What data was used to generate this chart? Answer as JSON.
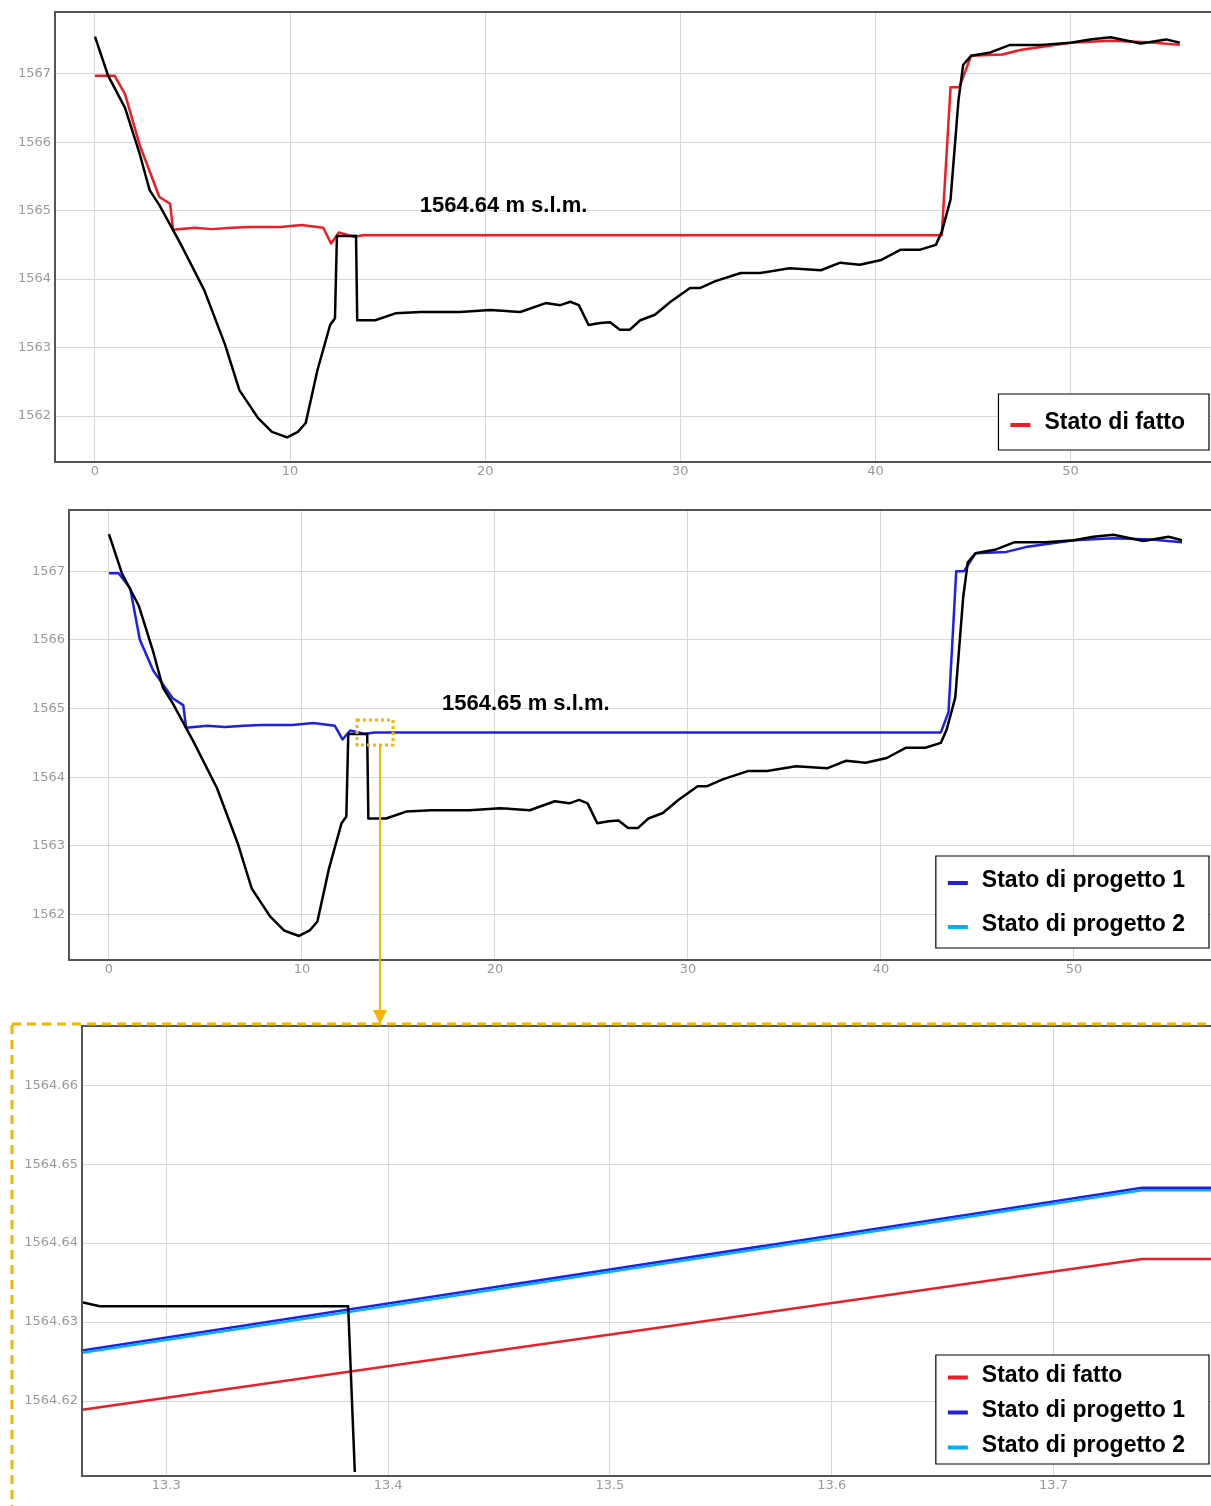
{
  "chart_data": [
    {
      "type": "line",
      "annotations": [
        "1564.64 m s.l.m."
      ],
      "xlim": [
        -2.05,
        57.2
      ],
      "ylim": [
        1561.33,
        1567.9
      ],
      "xticks": [
        0,
        10,
        20,
        30,
        40,
        50
      ],
      "yticks": [
        1562,
        1563,
        1564,
        1565,
        1566,
        1567
      ],
      "grid": true,
      "legend": "bottom right",
      "series": [
        {
          "color": "#000000",
          "x": [
            0,
            0.67,
            1.54,
            2.3,
            2.8,
            3.3,
            4.36,
            5.6,
            6.67,
            7.4,
            8.36,
            9.07,
            9.85,
            10.4,
            10.8,
            11.4,
            12.05,
            12.3,
            12.4,
            13.1,
            13.38,
            13.44,
            14.36,
            15.4,
            16.7,
            18.7,
            20.26,
            21.8,
            23.1,
            23.85,
            24.36,
            24.8,
            25.3,
            25.9,
            26.4,
            26.9,
            27.4,
            27.95,
            28.7,
            29.5,
            30.5,
            31,
            31.8,
            33.1,
            34.1,
            35.6,
            37.2,
            38.2,
            39.2,
            40.3,
            41.3,
            42.3,
            43.1,
            43.4,
            43.85,
            44.26,
            44.5,
            44.9,
            45.9,
            46.9,
            48.5,
            50,
            51,
            52.05,
            53.6,
            54.9,
            55.6
          ],
          "values": [
            1567.54,
            1566.97,
            1566.5,
            1565.82,
            1565.3,
            1565.08,
            1564.53,
            1563.84,
            1563.04,
            1562.38,
            1561.97,
            1561.77,
            1561.69,
            1561.77,
            1561.9,
            1562.67,
            1563.33,
            1563.43,
            1564.63,
            1564.63,
            1564.632,
            1563.4,
            1563.4,
            1563.5,
            1563.52,
            1563.52,
            1563.55,
            1563.52,
            1563.65,
            1563.62,
            1563.67,
            1563.62,
            1563.33,
            1563.36,
            1563.37,
            1563.26,
            1563.26,
            1563.4,
            1563.48,
            1563.67,
            1563.87,
            1563.87,
            1563.97,
            1564.09,
            1564.09,
            1564.16,
            1564.13,
            1564.24,
            1564.21,
            1564.28,
            1564.43,
            1564.43,
            1564.5,
            1564.69,
            1565.16,
            1566.62,
            1567.13,
            1567.26,
            1567.31,
            1567.42,
            1567.42,
            1567.45,
            1567.5,
            1567.53,
            1567.44,
            1567.5,
            1567.45
          ]
        },
        {
          "name": "Stato di fatto",
          "color": "#ee1c25",
          "x": [
            0,
            1,
            1.54,
            2.3,
            3.3,
            3.85,
            4,
            5.1,
            6,
            7,
            8,
            9.5,
            10.6,
            11.7,
            12.1,
            12.5,
            13.26,
            13.74,
            43.4,
            43.85,
            44.3,
            44.9,
            46.5,
            47.5,
            50,
            52,
            54,
            55.6
          ],
          "values": [
            1566.97,
            1566.97,
            1566.7,
            1565.95,
            1565.2,
            1565.1,
            1564.72,
            1564.75,
            1564.73,
            1564.75,
            1564.76,
            1564.76,
            1564.79,
            1564.75,
            1564.52,
            1564.68,
            1564.62,
            1564.64,
            1564.64,
            1566.8,
            1566.8,
            1567.26,
            1567.28,
            1567.35,
            1567.45,
            1567.48,
            1567.46,
            1567.42
          ]
        }
      ]
    },
    {
      "type": "line",
      "annotations": [
        "1564.65 m s.l.m."
      ],
      "xlim": [
        -2.07,
        57.1
      ],
      "ylim": [
        1561.34,
        1567.89
      ],
      "xticks": [
        0,
        10,
        20,
        30,
        40,
        50
      ],
      "yticks": [
        1562,
        1563,
        1564,
        1565,
        1566,
        1567
      ],
      "grid": true,
      "legend": "bottom right",
      "series": [
        {
          "color": "#000000",
          "x": [
            0,
            0.67,
            1.54,
            2.3,
            2.8,
            3.3,
            4.36,
            5.6,
            6.67,
            7.4,
            8.36,
            9.07,
            9.85,
            10.4,
            10.8,
            11.4,
            12.05,
            12.3,
            12.4,
            13.1,
            13.38,
            13.44,
            14.36,
            15.4,
            16.7,
            18.7,
            20.26,
            21.8,
            23.1,
            23.85,
            24.36,
            24.8,
            25.3,
            25.9,
            26.4,
            26.9,
            27.4,
            27.95,
            28.7,
            29.5,
            30.5,
            31,
            31.8,
            33.1,
            34.1,
            35.6,
            37.2,
            38.2,
            39.2,
            40.3,
            41.3,
            42.3,
            43.1,
            43.4,
            43.85,
            44.26,
            44.5,
            44.9,
            45.9,
            46.9,
            48.5,
            50,
            51,
            52.05,
            53.6,
            54.9,
            55.6
          ],
          "values": [
            1567.54,
            1566.97,
            1566.5,
            1565.82,
            1565.3,
            1565.08,
            1564.53,
            1563.84,
            1563.04,
            1562.38,
            1561.97,
            1561.77,
            1561.69,
            1561.77,
            1561.9,
            1562.67,
            1563.33,
            1563.43,
            1564.63,
            1564.63,
            1564.632,
            1563.4,
            1563.4,
            1563.5,
            1563.52,
            1563.52,
            1563.55,
            1563.52,
            1563.65,
            1563.62,
            1563.67,
            1563.62,
            1563.33,
            1563.36,
            1563.37,
            1563.26,
            1563.26,
            1563.4,
            1563.48,
            1563.67,
            1563.87,
            1563.87,
            1563.97,
            1564.09,
            1564.09,
            1564.16,
            1564.13,
            1564.24,
            1564.21,
            1564.28,
            1564.43,
            1564.43,
            1564.5,
            1564.69,
            1565.16,
            1566.62,
            1567.13,
            1567.26,
            1567.31,
            1567.42,
            1567.42,
            1567.45,
            1567.5,
            1567.53,
            1567.44,
            1567.5,
            1567.45
          ]
        },
        {
          "name": "Stato di progetto 2",
          "color": "#00b0f0"
        },
        {
          "name": "Stato di progetto 1",
          "color": "#1f1fe6",
          "x": [
            0,
            0.5,
            1.1,
            1.6,
            2.3,
            3.3,
            3.85,
            4,
            5.1,
            6,
            7,
            8,
            9.5,
            10.6,
            11.7,
            12.1,
            12.5,
            13.26,
            13.74,
            43.1,
            43.5,
            43.9,
            44.3,
            44.9,
            46.5,
            47.5,
            50,
            52,
            54,
            55.6
          ],
          "values": [
            1566.97,
            1566.97,
            1566.75,
            1566.0,
            1565.55,
            1565.15,
            1565.05,
            1564.72,
            1564.75,
            1564.73,
            1564.75,
            1564.76,
            1564.76,
            1564.79,
            1564.75,
            1564.55,
            1564.68,
            1564.63,
            1564.65,
            1564.65,
            1564.95,
            1567.0,
            1567.0,
            1567.26,
            1567.28,
            1567.35,
            1567.45,
            1567.48,
            1567.46,
            1567.42
          ]
        }
      ]
    },
    {
      "type": "line",
      "xlim": [
        13.262,
        13.771
      ],
      "ylim": [
        1564.6105,
        1564.6675
      ],
      "xticks": [
        13.3,
        13.4,
        13.5,
        13.6,
        13.7
      ],
      "yticks": [
        1564.62,
        1564.63,
        1564.64,
        1564.65,
        1564.66
      ],
      "grid": true,
      "legend": "bottom right",
      "series": [
        {
          "color": "#000000",
          "x": [
            13.262,
            13.27,
            13.382,
            13.385
          ],
          "values": [
            1564.6325,
            1564.632,
            1564.632,
            1564.611
          ]
        },
        {
          "name": "Stato di fatto",
          "color": "#ee1c25",
          "x": [
            13.262,
            13.74,
            13.771
          ],
          "values": [
            1564.6189,
            1564.638,
            1564.638
          ]
        },
        {
          "name": "Stato di progetto 2",
          "color": "#00b0f0",
          "x": [
            13.262,
            13.74,
            13.771
          ],
          "values": [
            1564.6261,
            1564.6467,
            1564.6467
          ]
        },
        {
          "name": "Stato di progetto 1",
          "color": "#1f1fe6",
          "x": [
            13.262,
            13.74,
            13.771
          ],
          "values": [
            1564.6264,
            1564.647,
            1564.647
          ]
        }
      ]
    }
  ]
}
